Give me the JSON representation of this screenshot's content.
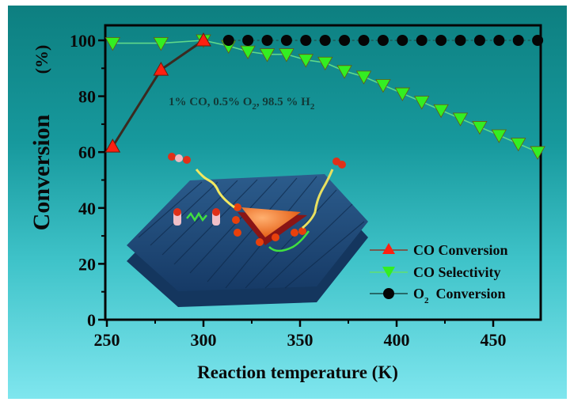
{
  "chart_data": {
    "type": "line",
    "title": "",
    "xlabel": "Reaction temperature (K)",
    "ylabel": "Conversion",
    "ylabel_unit": "(%)",
    "xlim": [
      250,
      475
    ],
    "ylim": [
      0,
      105
    ],
    "xticks": [
      250,
      300,
      350,
      400,
      450
    ],
    "yticks": [
      0,
      20,
      40,
      60,
      80,
      100
    ],
    "grid": false,
    "legend_position": "lower right",
    "annotation": {
      "text_parts": [
        "1% CO, 0.5% O",
        "2",
        ", 98.5 % H",
        "2"
      ],
      "text": "1% CO, 0.5% O2, 98.5 % H2"
    },
    "series": [
      {
        "name": "CO Conversion",
        "marker": "triangle-up",
        "color": "#ff2010",
        "line_color": "#3a2a20",
        "x": [
          253,
          278,
          300
        ],
        "y": [
          62,
          89.5,
          100
        ]
      },
      {
        "name": "CO Selectivity",
        "marker": "triangle-down",
        "color": "#33ee22",
        "line_color": "#5fd98a",
        "x": [
          253,
          278,
          300,
          313,
          323,
          333,
          343,
          353,
          363,
          373,
          383,
          393,
          403,
          413,
          423,
          433,
          443,
          453,
          463,
          473
        ],
        "y": [
          99,
          99,
          100,
          98,
          96,
          95,
          95,
          93,
          92,
          89,
          87,
          84,
          81,
          78,
          75,
          72,
          69,
          66,
          63,
          60
        ]
      },
      {
        "name": "O2 Conversion",
        "name_parts": [
          "O",
          "2",
          "  Conversion"
        ],
        "marker": "circle",
        "color": "#050505",
        "line_color": "#1d5a56",
        "x": [
          313,
          323,
          333,
          343,
          353,
          363,
          373,
          383,
          393,
          403,
          413,
          423,
          433,
          443,
          453,
          463,
          473
        ],
        "y": [
          100,
          100,
          100,
          100,
          100,
          100,
          100,
          100,
          100,
          100,
          100,
          100,
          100,
          100,
          100,
          100,
          100
        ]
      }
    ],
    "inset_illustration": "catalyst nanoparticle on hexagonal support with CO/O2/CO2 molecules"
  },
  "labels": {
    "xlabel": "Reaction temperature (K)",
    "ylabel": "Conversion",
    "ylabel_unit": "(%)",
    "legend": [
      "CO Conversion",
      "CO Selectivity",
      "O2 Conversion"
    ]
  }
}
